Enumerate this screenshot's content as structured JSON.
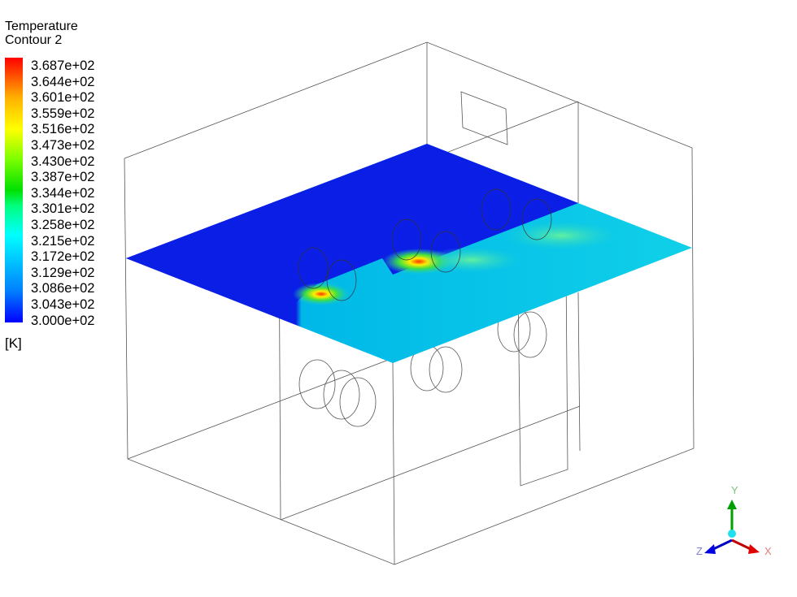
{
  "legend": {
    "title": "Temperature",
    "subtitle": "Contour 2",
    "units": "[K]",
    "ticks": [
      "3.687e+02",
      "3.644e+02",
      "3.601e+02",
      "3.559e+02",
      "3.516e+02",
      "3.473e+02",
      "3.430e+02",
      "3.387e+02",
      "3.344e+02",
      "3.301e+02",
      "3.258e+02",
      "3.215e+02",
      "3.172e+02",
      "3.129e+02",
      "3.086e+02",
      "3.043e+02",
      "3.000e+02"
    ],
    "range": [
      300.0,
      368.7
    ],
    "colormap": [
      "#0000ff",
      "#00ffff",
      "#00e000",
      "#ffff00",
      "#ff0000"
    ]
  },
  "axes_triad": {
    "x": "X",
    "y": "Y",
    "z": "Z",
    "colors": {
      "x": "#c00000",
      "y": "#00a000",
      "z": "#0000c0"
    }
  }
}
